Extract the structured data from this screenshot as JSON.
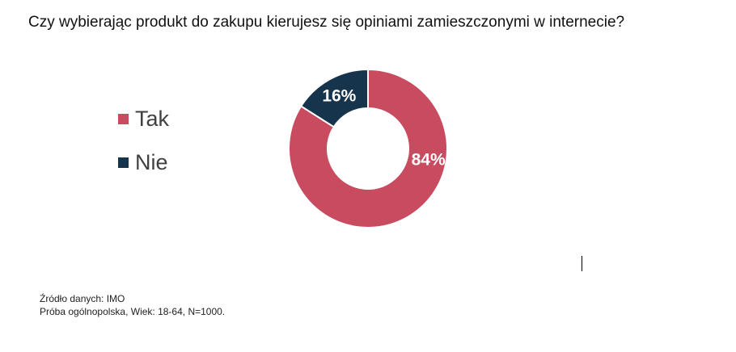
{
  "chart_data": {
    "type": "pie",
    "title": "Czy wybierając produkt do zakupu kierujesz się opiniami zamieszczonymi w internecie?",
    "categories": [
      "Tak",
      "Nie"
    ],
    "values": [
      84,
      16
    ],
    "labels": [
      "84%",
      "16%"
    ],
    "colors": [
      "#c84b5f",
      "#17344d"
    ],
    "legend_position": "left"
  },
  "source": {
    "line1": "Źródło danych: IMO",
    "line2": "Próba ogólnopolska, Wiek: 18-64, N=1000."
  }
}
